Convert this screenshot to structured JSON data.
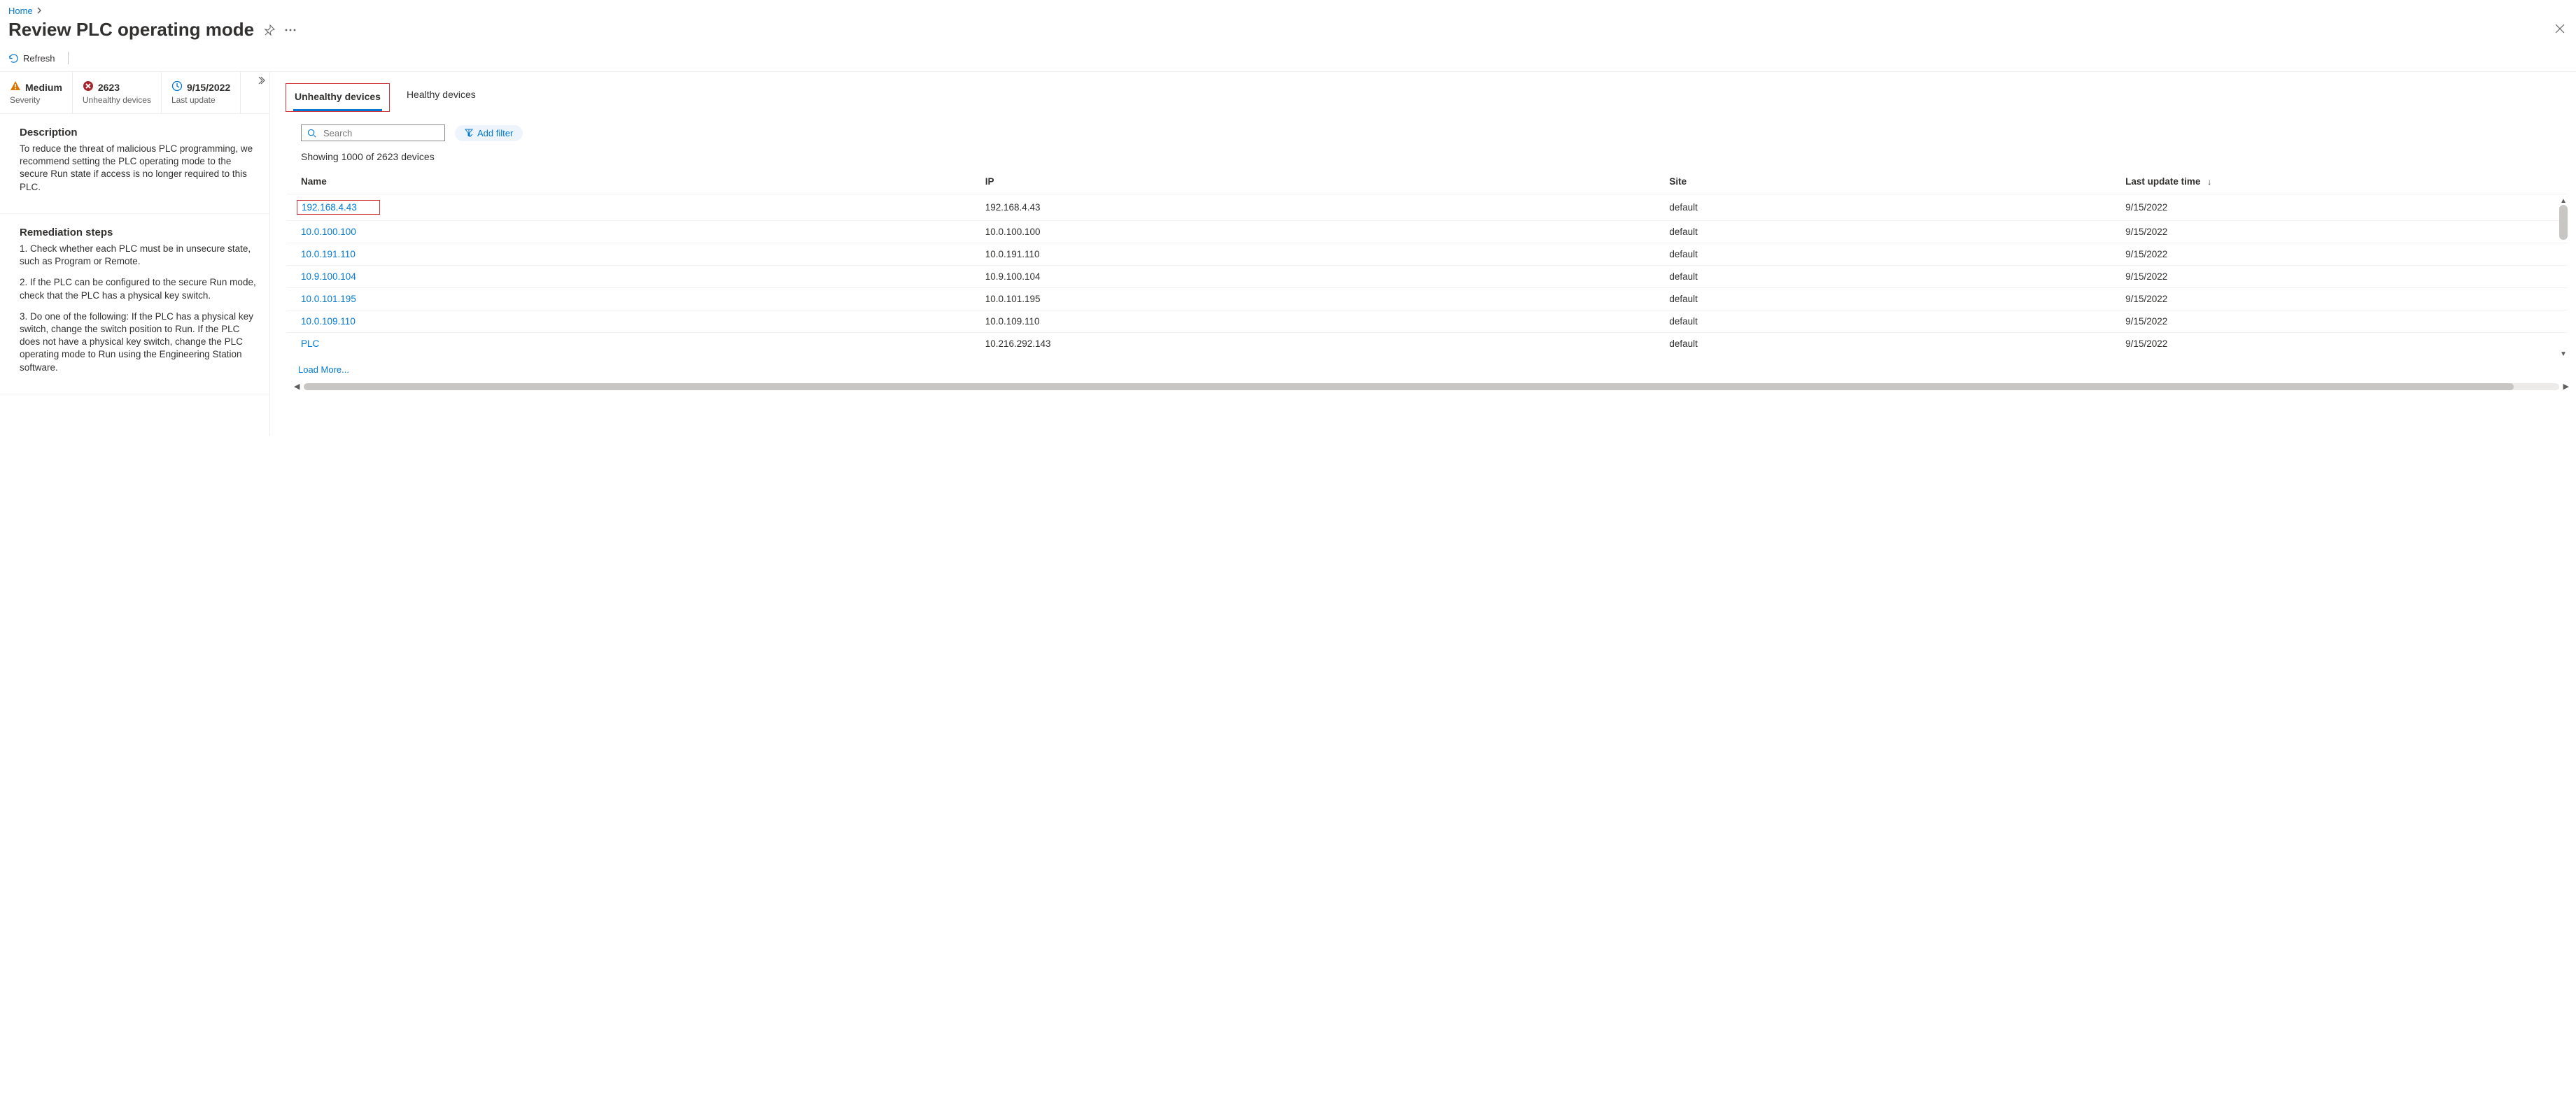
{
  "breadcrumb": {
    "home": "Home"
  },
  "page": {
    "title": "Review PLC operating mode",
    "refresh": "Refresh"
  },
  "summary": {
    "severity": {
      "value": "Medium",
      "label": "Severity"
    },
    "unhealthy": {
      "value": "2623",
      "label": "Unhealthy devices"
    },
    "last_update": {
      "value": "9/15/2022",
      "label": "Last update"
    }
  },
  "description": {
    "heading": "Description",
    "body": "To reduce the threat of malicious PLC programming, we recommend setting the PLC operating mode to the secure Run state if access is no longer required to this PLC."
  },
  "remediation": {
    "heading": "Remediation steps",
    "steps": [
      "1. Check whether each PLC must be in unsecure state, such as Program or Remote.",
      "2. If the PLC can be configured to the secure Run mode, check that the PLC has a physical key switch.",
      "3. Do one of the following: If the PLC has a physical key switch, change the switch position to Run. If the PLC does not have a physical key switch, change the PLC operating mode to Run using the Engineering Station software."
    ]
  },
  "tabs": {
    "unhealthy": "Unhealthy devices",
    "healthy": "Healthy devices"
  },
  "search": {
    "placeholder": "Search"
  },
  "add_filter": "Add filter",
  "showing": "Showing 1000 of 2623 devices",
  "columns": {
    "name": "Name",
    "ip": "IP",
    "site": "Site",
    "last_update": "Last update time"
  },
  "rows": [
    {
      "name": "192.168.4.43",
      "ip": "192.168.4.43",
      "site": "default",
      "last": "9/15/2022",
      "highlight": true
    },
    {
      "name": "10.0.100.100",
      "ip": "10.0.100.100",
      "site": "default",
      "last": "9/15/2022"
    },
    {
      "name": "10.0.191.110",
      "ip": "10.0.191.110",
      "site": "default",
      "last": "9/15/2022"
    },
    {
      "name": "10.9.100.104",
      "ip": "10.9.100.104",
      "site": "default",
      "last": "9/15/2022"
    },
    {
      "name": "10.0.101.195",
      "ip": "10.0.101.195",
      "site": "default",
      "last": "9/15/2022"
    },
    {
      "name": "10.0.109.110",
      "ip": "10.0.109.110",
      "site": "default",
      "last": "9/15/2022"
    },
    {
      "name": "PLC",
      "ip": "10.216.292.143",
      "site": "default",
      "last": "9/15/2022"
    }
  ],
  "load_more": "Load More...",
  "colors": {
    "link": "#0078d4",
    "text": "#323130",
    "muted": "#605e5c",
    "border": "#edebe9",
    "highlight_border": "#d13438",
    "severity_icon": "#f2a100",
    "error_icon": "#a4262c",
    "clock_icon": "#0078d4"
  }
}
